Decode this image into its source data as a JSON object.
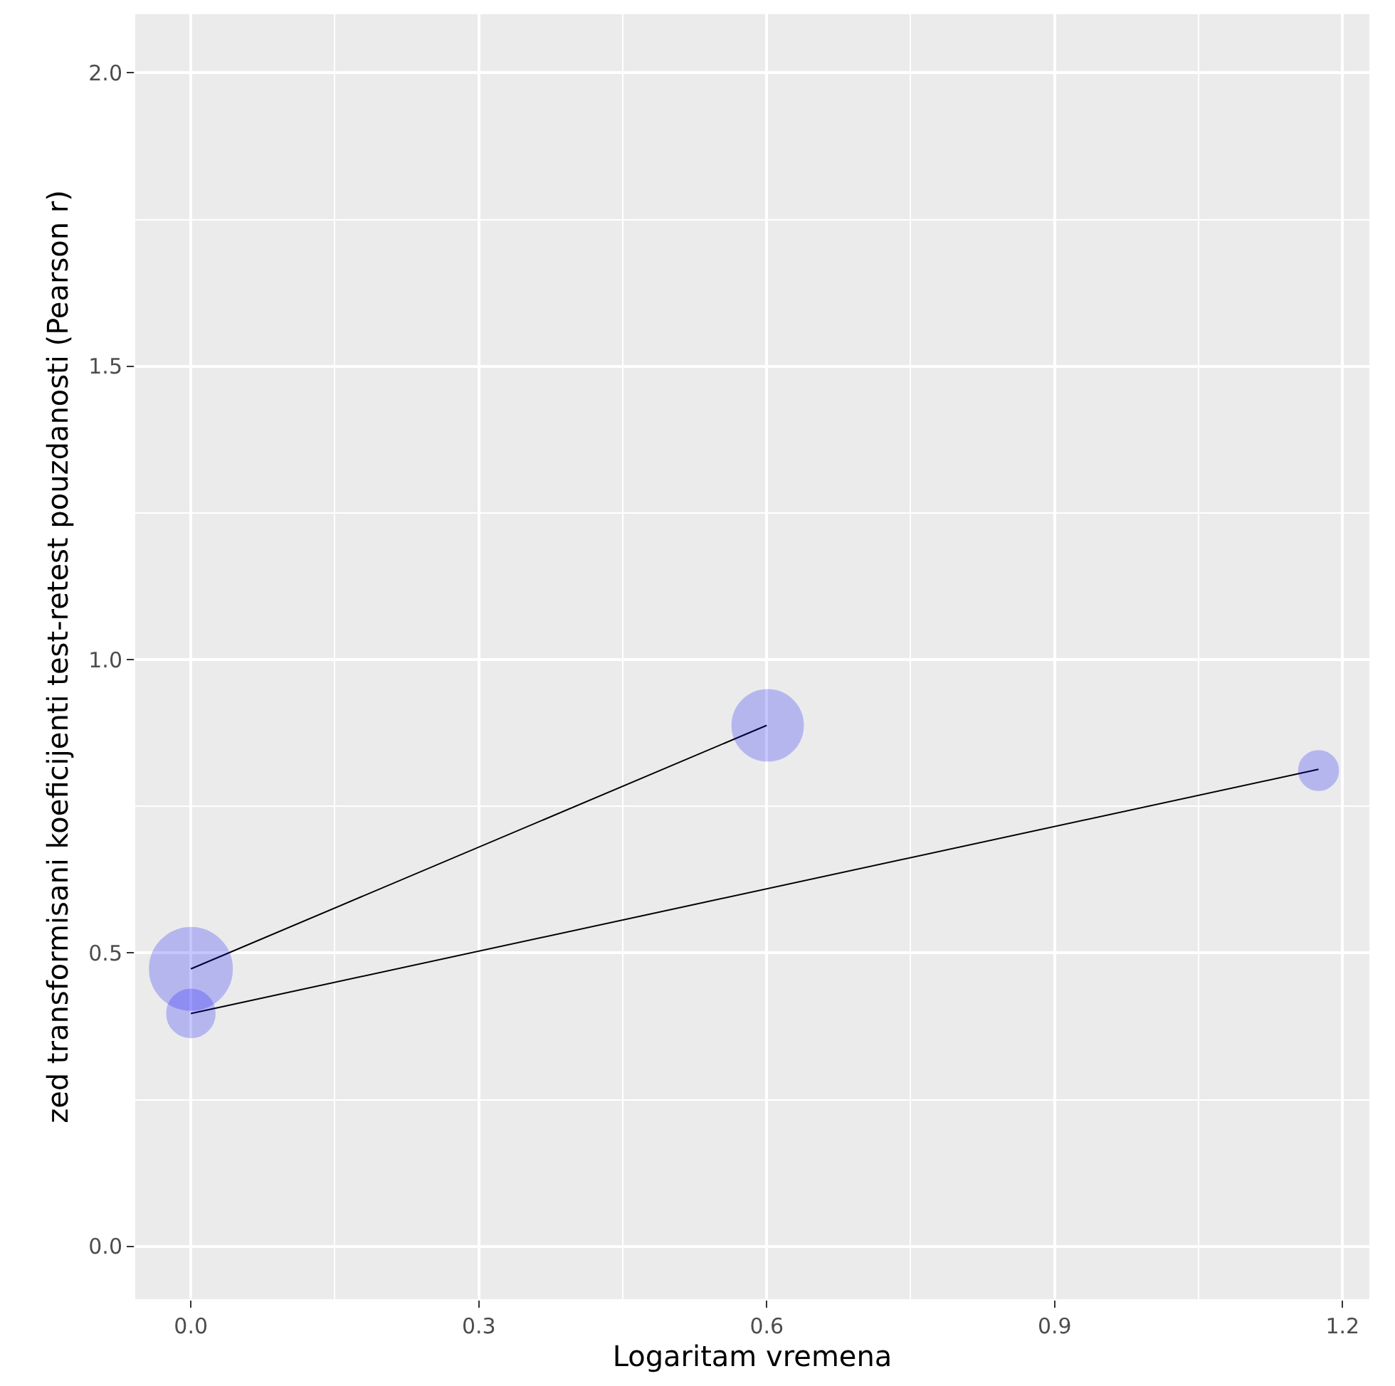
{
  "chart_data": {
    "type": "bubble",
    "xlabel": "Logaritam vremena",
    "ylabel": "zed transformisani koeficijenti test-retest pouzdanosti (Pearson r)",
    "xlim": [
      -0.058,
      1.228
    ],
    "ylim": [
      -0.09,
      2.1
    ],
    "xticks": [
      {
        "value": 0,
        "label": "0.0"
      },
      0.3,
      0.6,
      0.9,
      {
        "value": 1.2,
        "label": "1.2"
      }
    ],
    "yticks": [
      {
        "value": 0,
        "label": "0.0"
      },
      0.5,
      {
        "value": 1,
        "label": "1.0"
      },
      1.5,
      {
        "value": 2,
        "label": "2.0"
      }
    ],
    "grid": true,
    "series": [
      {
        "type": "line",
        "color": "#000000",
        "x": [
          0,
          0.6
        ],
        "values": [
          0.473,
          0.888
        ]
      },
      {
        "type": "line",
        "color": "#000000",
        "x": [
          0,
          1.175
        ],
        "values": [
          0.397,
          0.813
        ]
      },
      {
        "color": "#0000ff",
        "x": [
          0,
          0,
          0.601,
          1.175
        ],
        "values": [
          0.473,
          0.397,
          0.888,
          0.811
        ],
        "sizes": [
          1,
          0.34,
          0.74,
          0.23
        ]
      }
    ]
  }
}
